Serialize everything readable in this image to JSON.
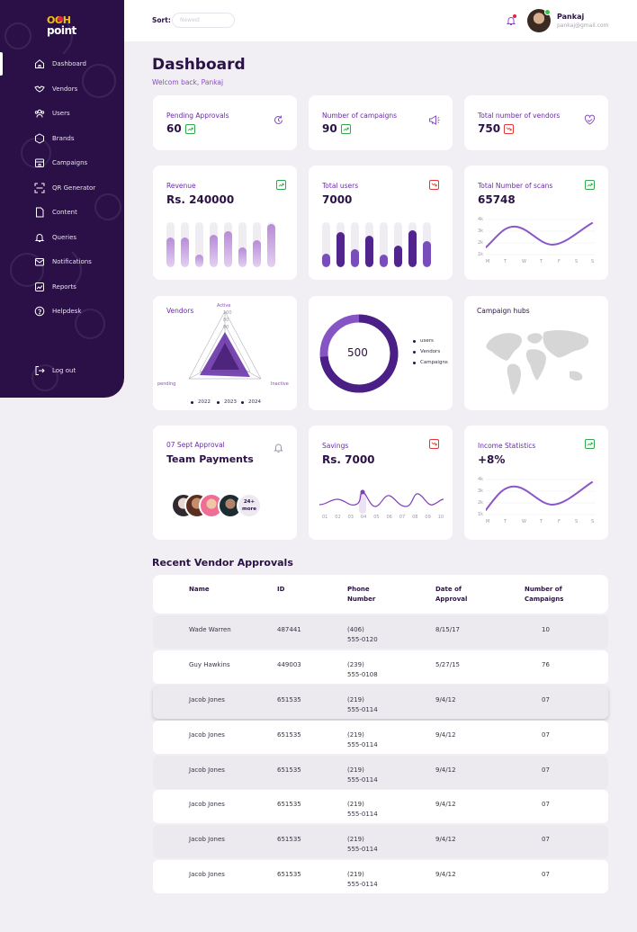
{
  "brand": {
    "line1": "OOH",
    "line2": "point"
  },
  "sidebar": {
    "items": [
      {
        "label": "Dashboard",
        "icon": "home-icon"
      },
      {
        "label": "Vendors",
        "icon": "handshake-icon"
      },
      {
        "label": "Users",
        "icon": "users-icon"
      },
      {
        "label": "Brands",
        "icon": "hexagon-icon"
      },
      {
        "label": "Campaigns",
        "icon": "store-icon"
      },
      {
        "label": "QR Generator",
        "icon": "qr-scan-icon"
      },
      {
        "label": "Content",
        "icon": "document-icon"
      },
      {
        "label": "Queries",
        "icon": "bell-icon"
      },
      {
        "label": "Notifications",
        "icon": "mail-icon"
      },
      {
        "label": "Reports",
        "icon": "chart-icon"
      },
      {
        "label": "Helpdesk",
        "icon": "help-icon"
      }
    ],
    "logout": "Log out"
  },
  "topbar": {
    "sort_label": "Sort:",
    "sort_value": "Newest",
    "user_name": "Pankaj",
    "user_email": "pankaj@gmail.com"
  },
  "header": {
    "title": "Dashboard",
    "welcome": "Welcom back, Pankaj"
  },
  "stats": {
    "pending": {
      "label": "Pending Approvals",
      "value": "60"
    },
    "campaigns": {
      "label": "Number of campaigns",
      "value": "90"
    },
    "vendors": {
      "label": "Total number of vendors",
      "value": "750"
    }
  },
  "revenue": {
    "label": "Revenue",
    "value": "Rs. 240000"
  },
  "total_users": {
    "label": "Total users",
    "value": "7000"
  },
  "scans": {
    "label": "Total Number of scans",
    "value": "65748",
    "yticks": [
      "4k",
      "3k",
      "2k",
      "1k"
    ],
    "days": [
      "M",
      "T",
      "W",
      "T",
      "F",
      "S",
      "S"
    ]
  },
  "vendors_radar": {
    "title": "Vendors",
    "axes": [
      "Active",
      "pending",
      "Inactive"
    ],
    "ticks": [
      "100",
      "80",
      "60"
    ],
    "years": [
      "2022",
      "2023",
      "2024"
    ]
  },
  "donut": {
    "value": "500",
    "legend": [
      "users",
      "Vendors",
      "Campaigns"
    ],
    "color_main": "#4a1f86",
    "color_light": "#8655c4"
  },
  "campaign_hubs": {
    "title": "Campaign hubs"
  },
  "approval": {
    "date": "07 Sept Approval",
    "title": "Team Payments",
    "more": "24+ more"
  },
  "savings": {
    "label": "Savings",
    "value": "Rs. 7000",
    "xticks": [
      "01",
      "02",
      "03",
      "04",
      "05",
      "06",
      "07",
      "08",
      "09",
      "10"
    ]
  },
  "income": {
    "label": "Income Statistics",
    "value": "+8%",
    "yticks": [
      "4k",
      "3k",
      "2k",
      "1k"
    ],
    "days": [
      "M",
      "T",
      "W",
      "T",
      "F",
      "S",
      "S"
    ]
  },
  "table": {
    "title": "Recent Vendor Approvals",
    "headers": [
      "Name",
      "ID",
      "Phone Number",
      "Date of Approval",
      "Number of Campaigns"
    ],
    "rows": [
      {
        "name": "Wade Warren",
        "id": "487441",
        "phone1": "(406)",
        "phone2": "555-0120",
        "date": "8/15/17",
        "count": "10"
      },
      {
        "name": "Guy Hawkins",
        "id": "449003",
        "phone1": "(239)",
        "phone2": "555-0108",
        "date": "5/27/15",
        "count": "76"
      },
      {
        "name": "Jacob Jones",
        "id": "651535",
        "phone1": "(219)",
        "phone2": "555-0114",
        "date": "9/4/12",
        "count": "07"
      },
      {
        "name": "Jacob Jones",
        "id": "651535",
        "phone1": "(219)",
        "phone2": "555-0114",
        "date": "9/4/12",
        "count": "07"
      },
      {
        "name": "Jacob Jones",
        "id": "651535",
        "phone1": "(219)",
        "phone2": "555-0114",
        "date": "9/4/12",
        "count": "07"
      },
      {
        "name": "Jacob Jones",
        "id": "651535",
        "phone1": "(219)",
        "phone2": "555-0114",
        "date": "9/4/12",
        "count": "07"
      },
      {
        "name": "Jacob Jones",
        "id": "651535",
        "phone1": "(219)",
        "phone2": "555-0114",
        "date": "9/4/12",
        "count": "07"
      },
      {
        "name": "Jacob Jones",
        "id": "651535",
        "phone1": "(219)",
        "phone2": "555-0114",
        "date": "9/4/12",
        "count": "07"
      }
    ]
  },
  "colors": {
    "sidebar": "#2b1048",
    "accent": "#8a4dc2",
    "up": "#2ea84a",
    "down": "#e03a3a"
  }
}
